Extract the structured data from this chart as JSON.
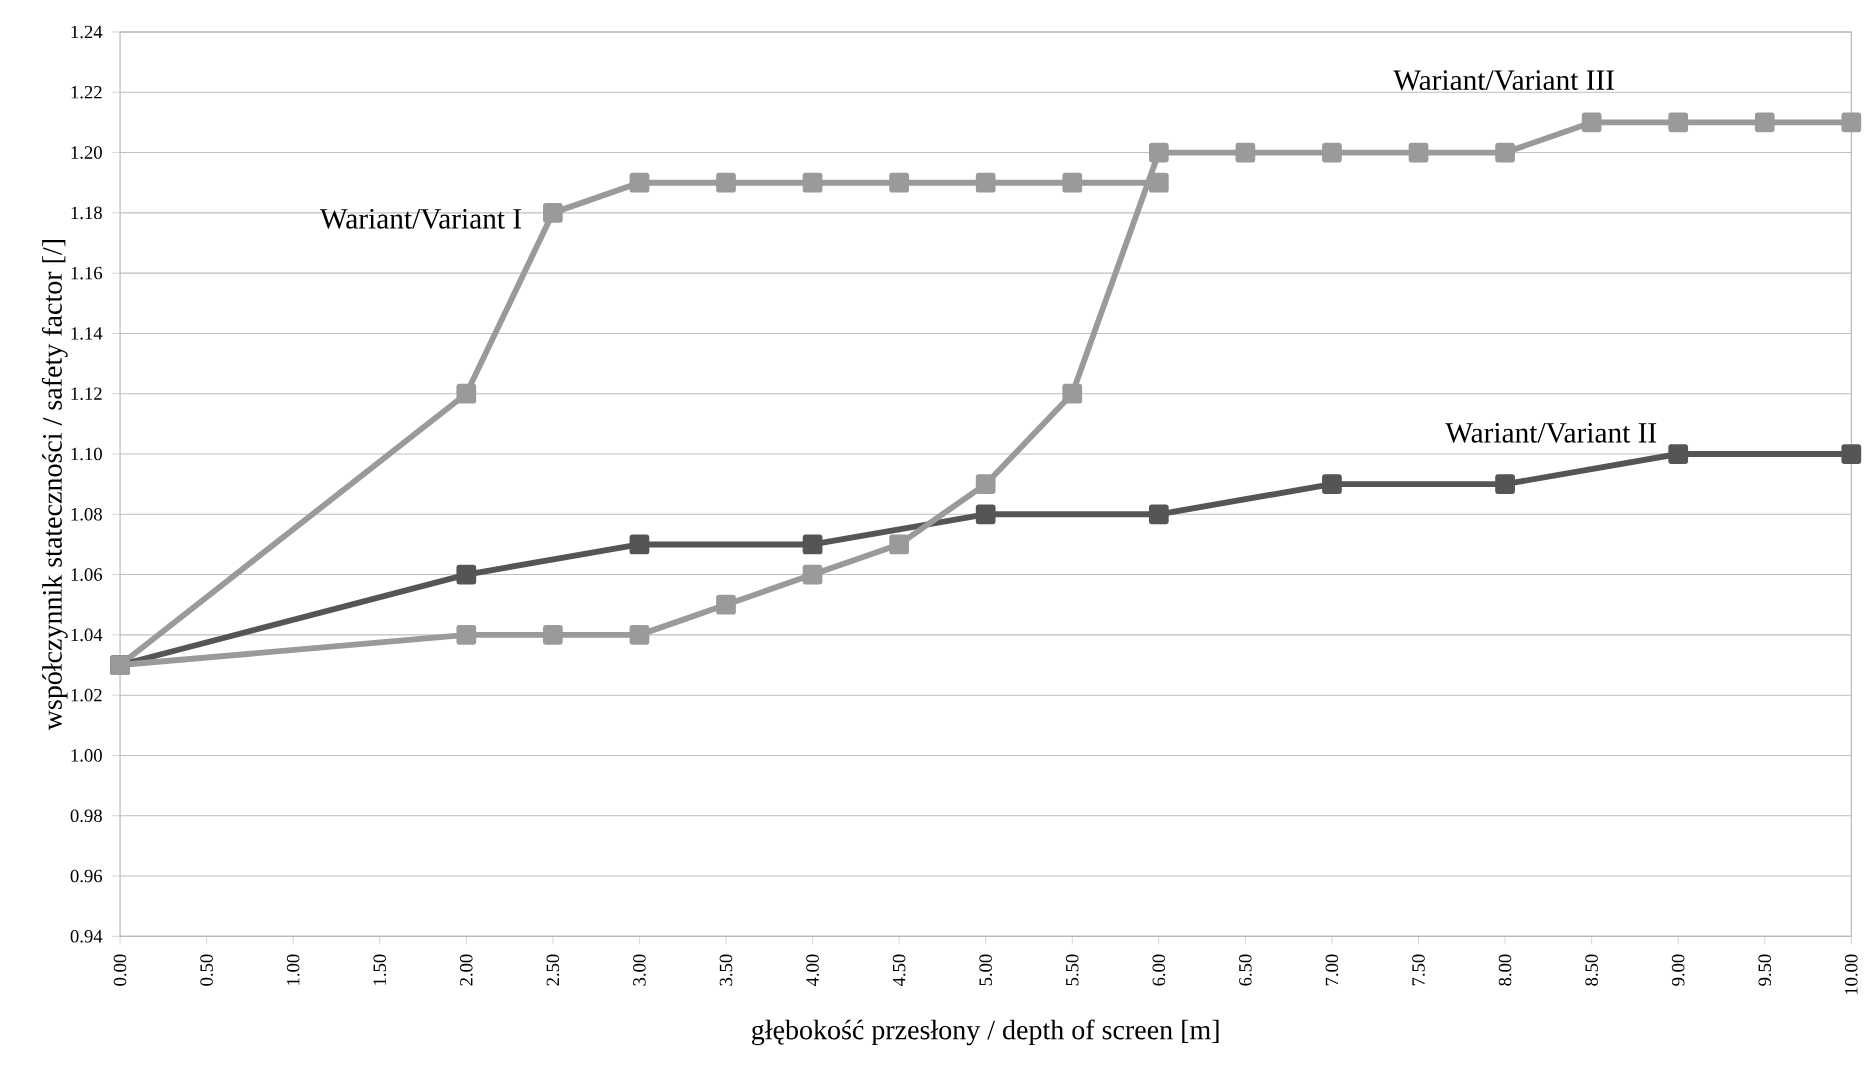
{
  "chart_data": {
    "type": "line",
    "xlabel": "głębokość przesłony / depth of screen [m]",
    "ylabel": "współczynnik stateczności / safety factor [/]",
    "series": [
      {
        "name": "Wariant/Variant I",
        "color": "#9a9a9a",
        "x": [
          0,
          2,
          2.5,
          3,
          3.5,
          4,
          4.5,
          5,
          5.5,
          6
        ],
        "values": [
          1.03,
          1.12,
          1.18,
          1.19,
          1.19,
          1.19,
          1.19,
          1.19,
          1.19,
          1.19
        ]
      },
      {
        "name": "Wariant/Variant II",
        "color": "#555555",
        "x": [
          0,
          2,
          3,
          4,
          5,
          6,
          7,
          8,
          9,
          10
        ],
        "values": [
          1.03,
          1.06,
          1.07,
          1.07,
          1.08,
          1.08,
          1.09,
          1.09,
          1.1,
          1.1
        ]
      },
      {
        "name": "Wariant/Variant III",
        "color": "#9a9a9a",
        "x": [
          0,
          2,
          2.5,
          3,
          3.5,
          4,
          4.5,
          5,
          5.5,
          6,
          6.5,
          7,
          7.5,
          8,
          8.5,
          9,
          9.5,
          10
        ],
        "values": [
          1.03,
          1.04,
          1.04,
          1.04,
          1.05,
          1.06,
          1.07,
          1.09,
          1.12,
          1.2,
          1.2,
          1.2,
          1.2,
          1.2,
          1.21,
          1.21,
          1.21,
          1.21
        ]
      }
    ],
    "xlim": [
      0,
      10
    ],
    "ylim": [
      0.94,
      1.24
    ],
    "xticks": [
      {
        "value": 0,
        "label": "0.00"
      },
      {
        "value": 0.5,
        "label": "0.50"
      },
      {
        "value": 1,
        "label": "1.00"
      },
      {
        "value": 1.5,
        "label": "1.50"
      },
      {
        "value": 2,
        "label": "2.00"
      },
      {
        "value": 2.5,
        "label": "2.50"
      },
      {
        "value": 3,
        "label": "3.00"
      },
      {
        "value": 3.5,
        "label": "3.50"
      },
      {
        "value": 4,
        "label": "4.00"
      },
      {
        "value": 4.5,
        "label": "4.50"
      },
      {
        "value": 5,
        "label": "5.00"
      },
      {
        "value": 5.5,
        "label": "5.50"
      },
      {
        "value": 6,
        "label": "6.00"
      },
      {
        "value": 6.5,
        "label": "6.50"
      },
      {
        "value": 7,
        "label": "7.00"
      },
      {
        "value": 7.5,
        "label": "7.50"
      },
      {
        "value": 8,
        "label": "8.00"
      },
      {
        "value": 8.5,
        "label": "8.50"
      },
      {
        "value": 9,
        "label": "9.00"
      },
      {
        "value": 9.5,
        "label": "9.50"
      },
      {
        "value": 10,
        "label": "10.00"
      }
    ],
    "yticks": [
      {
        "value": 0.94,
        "label": "0.94"
      },
      {
        "value": 0.96,
        "label": "0.96"
      },
      {
        "value": 0.98,
        "label": "0.98"
      },
      {
        "value": 1.0,
        "label": "1.00"
      },
      {
        "value": 1.02,
        "label": "1.02"
      },
      {
        "value": 1.04,
        "label": "1.04"
      },
      {
        "value": 1.06,
        "label": "1.06"
      },
      {
        "value": 1.08,
        "label": "1.08"
      },
      {
        "value": 1.1,
        "label": "1.10"
      },
      {
        "value": 1.12,
        "label": "1.12"
      },
      {
        "value": 1.14,
        "label": "1.14"
      },
      {
        "value": 1.16,
        "label": "1.16"
      },
      {
        "value": 1.18,
        "label": "1.18"
      },
      {
        "value": 1.2,
        "label": "1.20"
      },
      {
        "value": 1.22,
        "label": "1.22"
      },
      {
        "value": 1.24,
        "label": "1.24"
      }
    ],
    "grid": "y",
    "marker": "square",
    "line_style": "solid",
    "legend": false
  }
}
